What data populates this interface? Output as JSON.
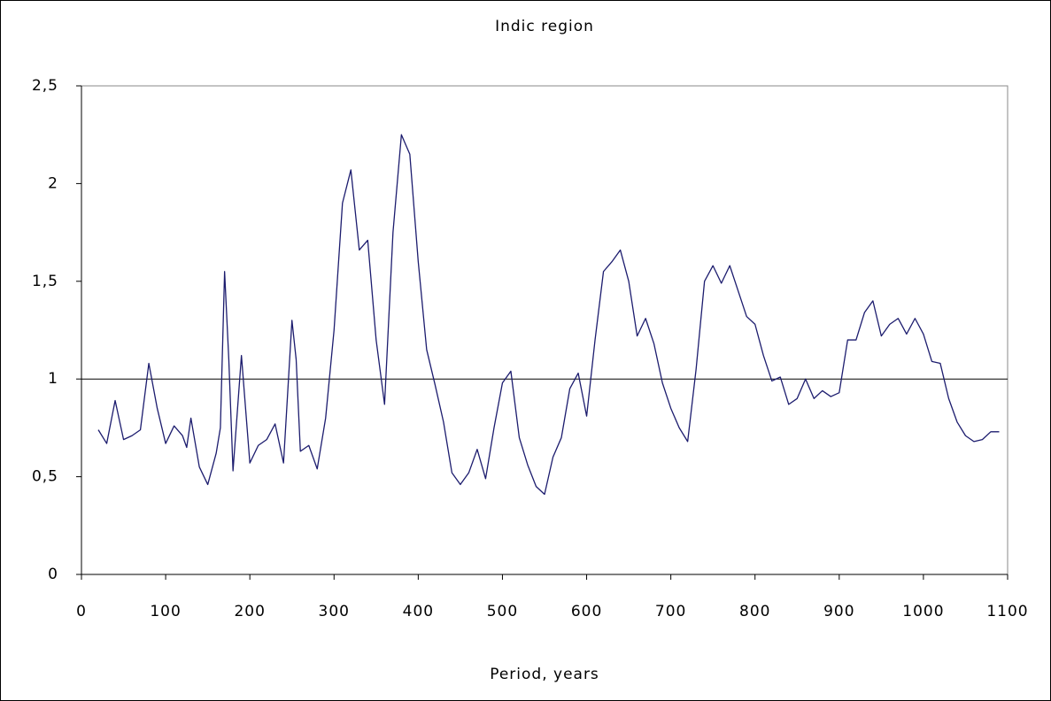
{
  "chart_data": {
    "type": "line",
    "title": "Indic region",
    "x_label": "Period, years",
    "x": [
      20,
      30,
      40,
      50,
      60,
      70,
      80,
      90,
      100,
      110,
      120,
      125,
      130,
      140,
      150,
      160,
      165,
      170,
      175,
      180,
      190,
      200,
      210,
      220,
      230,
      240,
      250,
      255,
      260,
      270,
      280,
      290,
      300,
      310,
      320,
      330,
      340,
      350,
      360,
      370,
      380,
      390,
      400,
      410,
      420,
      430,
      440,
      450,
      460,
      470,
      480,
      490,
      500,
      510,
      520,
      530,
      540,
      550,
      560,
      570,
      580,
      590,
      600,
      610,
      620,
      630,
      640,
      650,
      660,
      670,
      680,
      690,
      700,
      710,
      720,
      730,
      740,
      750,
      760,
      770,
      780,
      790,
      800,
      810,
      820,
      830,
      840,
      850,
      860,
      870,
      880,
      890,
      900,
      910,
      920,
      930,
      940,
      950,
      960,
      970,
      980,
      990,
      1000,
      1010,
      1020,
      1030,
      1040,
      1050,
      1060,
      1070,
      1080,
      1090
    ],
    "series": [
      {
        "color": "#1c1c6e",
        "values": [
          0.74,
          0.67,
          0.89,
          0.69,
          0.71,
          0.74,
          1.08,
          0.85,
          0.67,
          0.76,
          0.71,
          0.65,
          0.8,
          0.55,
          0.46,
          0.62,
          0.75,
          1.55,
          1.1,
          0.53,
          1.12,
          0.57,
          0.66,
          0.69,
          0.77,
          0.57,
          1.3,
          1.1,
          0.63,
          0.66,
          0.54,
          0.8,
          1.25,
          1.9,
          2.07,
          1.66,
          1.71,
          1.2,
          0.87,
          1.75,
          2.25,
          2.15,
          1.6,
          1.15,
          0.97,
          0.78,
          0.52,
          0.46,
          0.52,
          0.64,
          0.49,
          0.75,
          0.98,
          1.04,
          0.7,
          0.56,
          0.45,
          0.41,
          0.6,
          0.7,
          0.95,
          1.03,
          0.81,
          1.2,
          1.55,
          1.6,
          1.66,
          1.5,
          1.22,
          1.31,
          1.18,
          0.98,
          0.85,
          0.75,
          0.68,
          1.05,
          1.5,
          1.58,
          1.49,
          1.58,
          1.45,
          1.32,
          1.28,
          1.12,
          0.99,
          1.01,
          0.87,
          0.9,
          1.0,
          0.9,
          0.94,
          0.91,
          0.93,
          1.2,
          1.2,
          1.34,
          1.4,
          1.22,
          1.28,
          1.31,
          1.23,
          1.31,
          1.23,
          1.09,
          1.08,
          0.9,
          0.78,
          0.71,
          0.68,
          0.69,
          0.73,
          0.73
        ]
      }
    ],
    "reference_line": 1,
    "xlim": [
      0,
      1100
    ],
    "xticks": [
      0,
      100,
      200,
      300,
      400,
      500,
      600,
      700,
      800,
      900,
      1000,
      1100
    ],
    "ylim": [
      0,
      2.5
    ],
    "yticks": [
      0,
      {
        "value": 0.5,
        "label": "0,5"
      },
      1,
      {
        "value": 1.5,
        "label": "1,5"
      },
      2,
      {
        "value": 2.5,
        "label": "2,5"
      }
    ],
    "grid": false
  }
}
